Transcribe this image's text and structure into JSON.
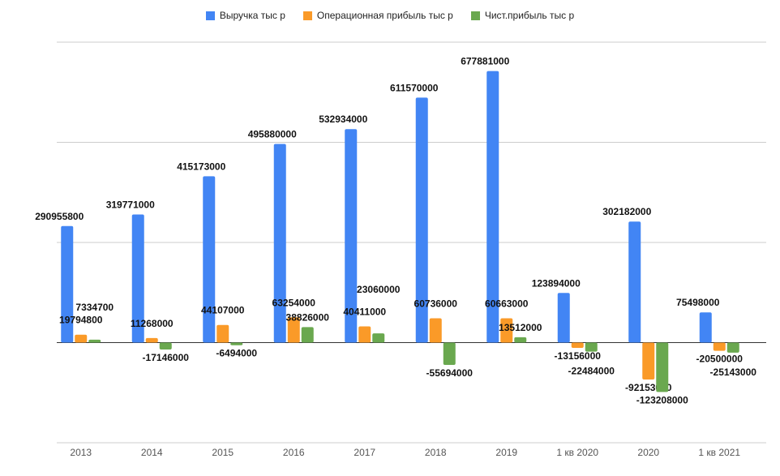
{
  "chart_data": {
    "type": "bar",
    "title": "",
    "xlabel": "",
    "ylabel": "",
    "ylim": [
      -250000000,
      750000000
    ],
    "grid": true,
    "legend_position": "top",
    "categories": [
      "2013",
      "2014",
      "2015",
      "2016",
      "2017",
      "2018",
      "2019",
      "1 кв 2020",
      "2020",
      "1 кв 2021"
    ],
    "series": [
      {
        "name": "Выручка тыс р",
        "color": "#4285f4",
        "values": [
          290955800,
          319771000,
          415173000,
          495880000,
          532934000,
          611570000,
          677881000,
          123894000,
          302182000,
          75498000
        ]
      },
      {
        "name": "Операционная прибыль тыс р",
        "color": "#fa9a28",
        "values": [
          19794800,
          11268000,
          44107000,
          63254000,
          40411000,
          60736000,
          60663000,
          -13156000,
          -92153000,
          -20500000
        ]
      },
      {
        "name": "Чист.прибыль тыс р",
        "color": "#6aa84f",
        "values": [
          7334700,
          -17146000,
          -6494000,
          38826000,
          23060000,
          -55694000,
          13512000,
          -22484000,
          -123208000,
          -25143000
        ]
      }
    ]
  }
}
